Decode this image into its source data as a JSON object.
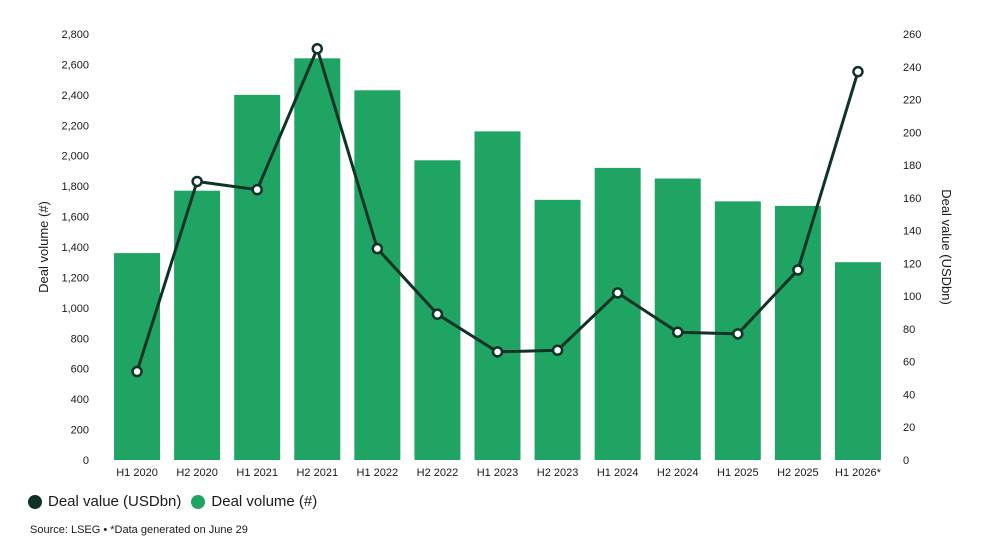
{
  "chart_data": {
    "type": "bar",
    "categories": [
      "H1 2020",
      "H2 2020",
      "H1 2021",
      "H2 2021",
      "H1 2022",
      "H2 2022",
      "H1 2023",
      "H2 2023",
      "H1 2024",
      "H2 2024",
      "H1 2025",
      "H2 2025",
      "H1 2026*"
    ],
    "series": [
      {
        "name": "Deal volume (#)",
        "type": "bar",
        "axis": "left",
        "color": "#1fa463",
        "values": [
          1360,
          1770,
          2400,
          2640,
          2430,
          1970,
          2160,
          1710,
          1920,
          1850,
          1700,
          1670,
          1300
        ]
      },
      {
        "name": "Deal value (USDbn)",
        "type": "line",
        "axis": "right",
        "color": "#0f3326",
        "values": [
          54,
          170,
          165,
          251,
          129,
          89,
          66,
          67,
          102,
          78,
          77,
          116,
          237
        ]
      }
    ],
    "ylabel": "Deal volume (#)",
    "y2label": "Deal value (USDbn)",
    "ylim": [
      0,
      2800
    ],
    "y2lim": [
      0,
      260
    ],
    "yticks": [
      "0",
      "200",
      "400",
      "600",
      "800",
      "1,000",
      "1,200",
      "1,400",
      "1,600",
      "1,800",
      "2,000",
      "2,200",
      "2,400",
      "2,600",
      "2,800"
    ],
    "y2ticks": [
      "0",
      "20",
      "40",
      "60",
      "80",
      "100",
      "120",
      "140",
      "160",
      "180",
      "200",
      "220",
      "240",
      "260"
    ],
    "grid": false,
    "legend_position": "bottom-left"
  },
  "legend": {
    "value_label": "Deal value (USDbn)",
    "volume_label": "Deal volume (#)",
    "value_color": "#0f3326",
    "volume_color": "#1fa463"
  },
  "source_note": "Source: LSEG • *Data generated on June 29"
}
